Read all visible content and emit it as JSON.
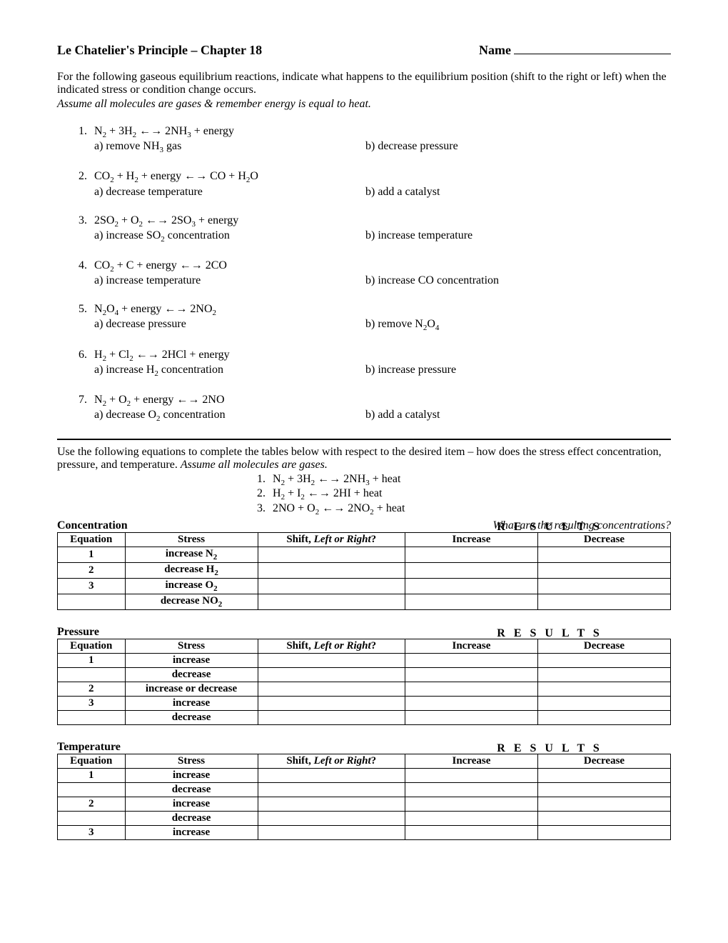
{
  "header": {
    "title": "Le Chatelier's Principle – Chapter 18",
    "name_label": "Name"
  },
  "intro": {
    "line1": "For the following gaseous equilibrium reactions, indicate what happens to the equilibrium position (shift to the right or left) when the indicated stress or condition change occurs.",
    "assume": "Assume all molecules are gases & remember energy is equal to heat."
  },
  "problems": [
    {
      "num": "1.",
      "eq_html": "N<sub>2</sub>  +  3H<sub>2</sub>  <span class='arrow'>←→</span>  2NH<sub>3</sub>  +  energy",
      "a_html": "a) remove NH<sub>3</sub> gas",
      "b": "b) decrease pressure"
    },
    {
      "num": "2.",
      "eq_html": "CO<sub>2</sub>  +  H<sub>2</sub>  +  energy  <span class='arrow'>←→</span>  CO  +  H<sub>2</sub>O",
      "a_html": "a) decrease temperature",
      "b": "b) add a catalyst"
    },
    {
      "num": "3.",
      "eq_html": "2SO<sub>2</sub>  +  O<sub>2</sub>  <span class='arrow'>←→</span>  2SO<sub>3</sub>  +  energy",
      "a_html": "a) increase SO<sub>2</sub> concentration",
      "b": "b) increase temperature"
    },
    {
      "num": "4.",
      "eq_html": "CO<sub>2</sub>  +  C  +  energy  <span class='arrow'>←→</span>  2CO",
      "a_html": "a) increase temperature",
      "b": "b) increase CO concentration"
    },
    {
      "num": "5.",
      "eq_html": "N<sub>2</sub>O<sub>4</sub>  +  energy  <span class='arrow'>←→</span>  2NO<sub>2</sub>",
      "a_html": "a) decrease pressure",
      "b_html": "b) remove N<sub>2</sub>O<sub>4</sub>"
    },
    {
      "num": "6.",
      "eq_html": "H<sub>2</sub>  +  Cl<sub>2</sub>  <span class='arrow'>←→</span>  2HCl  +  energy",
      "a_html": "a) increase H<sub>2</sub> concentration",
      "b": "b) increase pressure"
    },
    {
      "num": "7.",
      "eq_html": "N<sub>2</sub>  +  O<sub>2</sub>  +  energy  <span class='arrow'>←→</span>  2NO",
      "a_html": "a) decrease O<sub>2</sub> concentration",
      "b": "b) add a catalyst"
    }
  ],
  "instr2": {
    "text": "Use the following equations to complete the tables below with respect to the desired item – how does the stress effect concentration, pressure, and temperature.  ",
    "assume": "Assume all molecules are gases."
  },
  "eqlist": [
    {
      "num": "1.",
      "eq_html": "N<sub>2</sub>  +  3H<sub>2</sub>  <span class='arrow'>←→</span>  2NH<sub>3</sub>  +  heat"
    },
    {
      "num": "2.",
      "eq_html": "H<sub>2</sub>  +  I<sub>2</sub>  <span class='arrow'>←→</span>  2HI  +  heat"
    },
    {
      "num": "3.",
      "eq_html": "2NO  +  O<sub>2</sub>  <span class='arrow'>←→</span>  2NO<sub>2</sub>  +  heat"
    }
  ],
  "table_headers": {
    "equation": "Equation",
    "stress": "Stress",
    "shift_html": "Shift, <span class='italic'>Left or Right</span>?",
    "increase": "Increase",
    "decrease": "Decrease"
  },
  "results_label": "R E S U L T S",
  "sections": {
    "concentration": {
      "title": "Concentration",
      "question": "What are the resulting concentrations?",
      "rows": [
        {
          "eq": "1",
          "stress_html": "increase N<sub>2</sub>"
        },
        {
          "eq": "2",
          "stress_html": "decrease H<sub>2</sub>"
        },
        {
          "eq": "3",
          "stress_html": "increase O<sub>2</sub>"
        },
        {
          "eq": "",
          "stress_html": "decrease NO<sub>2</sub>"
        }
      ]
    },
    "pressure": {
      "title": "Pressure",
      "rows": [
        {
          "eq": "1",
          "stress": "increase"
        },
        {
          "eq": "",
          "stress": "decrease"
        },
        {
          "eq": "2",
          "stress": "increase or decrease"
        },
        {
          "eq": "3",
          "stress": "increase"
        },
        {
          "eq": "",
          "stress": "decrease"
        }
      ]
    },
    "temperature": {
      "title": "Temperature",
      "rows": [
        {
          "eq": "1",
          "stress": "increase"
        },
        {
          "eq": "",
          "stress": "decrease"
        },
        {
          "eq": "2",
          "stress": "increase"
        },
        {
          "eq": "",
          "stress": "decrease"
        },
        {
          "eq": "3",
          "stress": "increase"
        }
      ]
    }
  }
}
